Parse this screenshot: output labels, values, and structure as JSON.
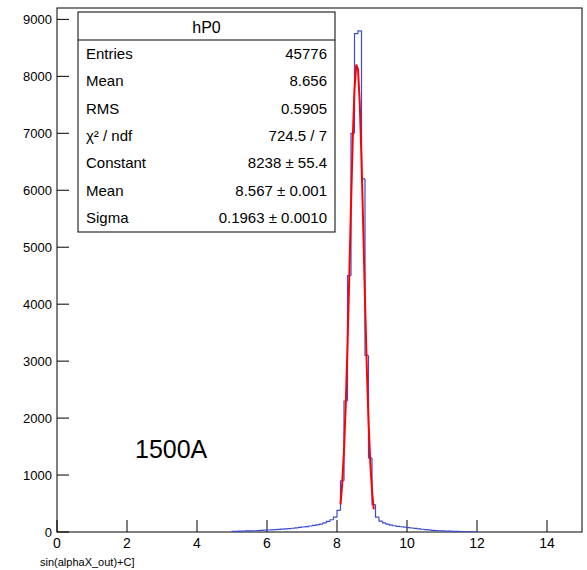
{
  "chart_data": {
    "type": "histogram",
    "annotation": "1500A",
    "caption": "sin(alphaX_out)+C]",
    "xlim": [
      0,
      15
    ],
    "ylim": [
      0,
      9200
    ],
    "xticks": [
      0,
      2,
      4,
      6,
      8,
      10,
      12,
      14
    ],
    "yticks": [
      0,
      1000,
      2000,
      3000,
      4000,
      5000,
      6000,
      7000,
      8000,
      9000
    ],
    "grid": false,
    "stats": {
      "title": "hP0",
      "rows": [
        {
          "label": "Entries",
          "value": "45776"
        },
        {
          "label": "Mean",
          "value": "8.656"
        },
        {
          "label": "RMS",
          "value": "0.5905"
        },
        {
          "label": "χ² / ndf",
          "value": "724.5 / 7"
        },
        {
          "label": "Constant",
          "value": "8238 ± 55.4"
        },
        {
          "label": "Mean",
          "value": "8.567 ± 0.001"
        },
        {
          "label": "Sigma",
          "value": "0.1963 ± 0.0010"
        }
      ]
    },
    "series": [
      {
        "type": "step",
        "color": "#3a4ccf",
        "bins": [
          5,
          5.1,
          5.2,
          5.3,
          5.4,
          5.5,
          5.6,
          5.7,
          5.8,
          5.9,
          6,
          6.1,
          6.2,
          6.3,
          6.4,
          6.5,
          6.6,
          6.7,
          6.8,
          6.9,
          7,
          7.1,
          7.2,
          7.3,
          7.4,
          7.5,
          7.6,
          7.7,
          7.8,
          7.9,
          8,
          8.1,
          8.2,
          8.3,
          8.4,
          8.5,
          8.6,
          8.7,
          8.8,
          8.9,
          9,
          9.1,
          9.2,
          9.3,
          9.4,
          9.5,
          9.6,
          9.7,
          9.8,
          9.9,
          10,
          10.1,
          10.2,
          10.3,
          10.4,
          10.5,
          10.6,
          10.7,
          10.8,
          10.9,
          11,
          11.1,
          11.2,
          11.3,
          11.4,
          11.5,
          11.6,
          11.7,
          11.8,
          11.9,
          12
        ],
        "values": [
          10,
          12,
          14,
          15,
          18,
          20,
          22,
          25,
          28,
          32,
          35,
          38,
          42,
          46,
          50,
          55,
          60,
          66,
          72,
          80,
          88,
          95,
          105,
          115,
          125,
          140,
          160,
          185,
          215,
          260,
          380,
          900,
          2300,
          4500,
          7000,
          8750,
          8800,
          6200,
          3100,
          1300,
          480,
          260,
          190,
          160,
          140,
          120,
          110,
          100,
          92,
          85,
          78,
          70,
          62,
          55,
          48,
          42,
          36,
          30,
          26,
          22,
          19,
          16,
          14,
          12,
          10,
          8,
          7,
          6,
          5,
          4
        ]
      },
      {
        "type": "line",
        "color": "#ff0000",
        "x": [
          8.1,
          8.15,
          8.2,
          8.25,
          8.3,
          8.35,
          8.4,
          8.45,
          8.5,
          8.55,
          8.6,
          8.65,
          8.7,
          8.75,
          8.8,
          8.85,
          8.9,
          8.95,
          9,
          9.05
        ],
        "values": [
          486,
          863,
          1435,
          2237,
          3267,
          4472,
          5737,
          6898,
          7773,
          8208,
          8122,
          7534,
          6551,
          5336,
          4075,
          2915,
          1956,
          1228,
          724,
          398
        ]
      }
    ]
  }
}
